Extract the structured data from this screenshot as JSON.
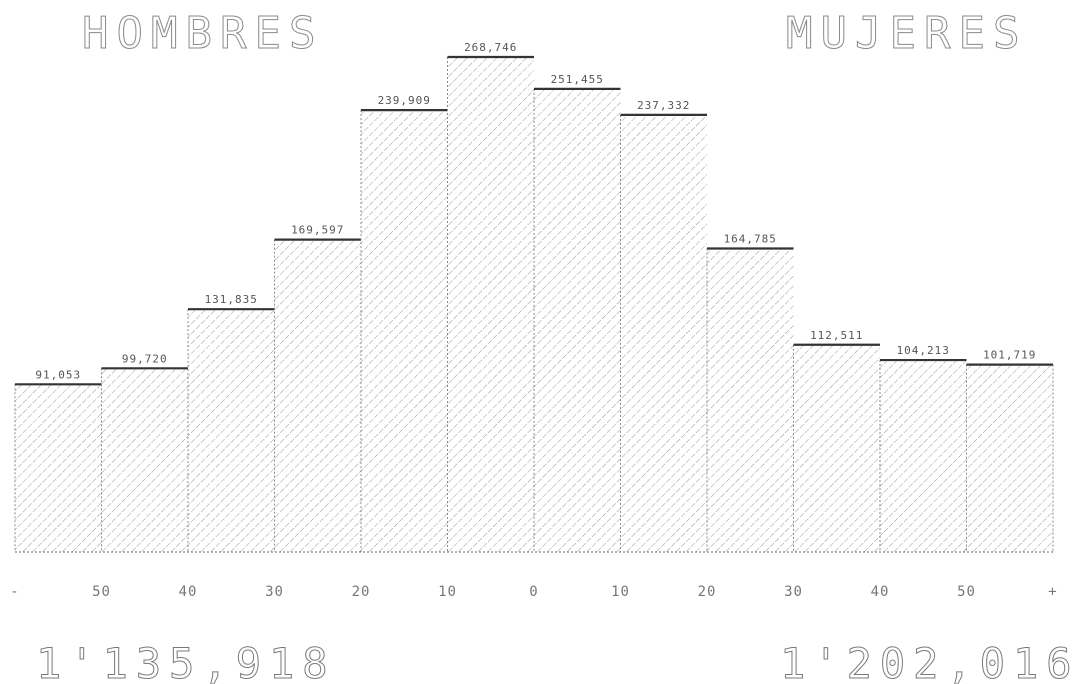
{
  "chart_data": {
    "type": "bar",
    "left_title": "HOMBRES",
    "right_title": "MUJERES",
    "tick_labels": [
      "-",
      "50",
      "40",
      "30",
      "20",
      "10",
      "0",
      "10",
      "20",
      "30",
      "40",
      "50",
      "+"
    ],
    "value_labels": [
      "91,053",
      "99,720",
      "131,835",
      "169,597",
      "239,909",
      "268,746",
      "251,455",
      "237,332",
      "164,785",
      "112,511",
      "104,213",
      "101,719"
    ],
    "values": [
      91053,
      99720,
      131835,
      169597,
      239909,
      268746,
      251455,
      237332,
      164785,
      112511,
      104213,
      101719
    ],
    "groups": [
      "HOMBRES",
      "HOMBRES",
      "HOMBRES",
      "HOMBRES",
      "HOMBRES",
      "HOMBRES",
      "MUJERES",
      "MUJERES",
      "MUJERES",
      "MUJERES",
      "MUJERES",
      "MUJERES"
    ],
    "ylim": [
      0,
      268746
    ],
    "grid": false,
    "total_left": "1'135,918",
    "total_right": "1'202,016"
  }
}
